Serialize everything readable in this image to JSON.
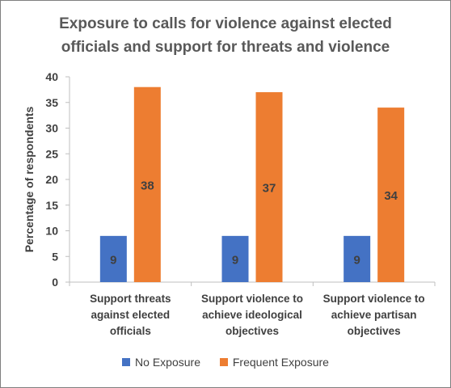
{
  "chart_data": {
    "type": "bar",
    "title_lines": [
      "Exposure to calls for violence against elected",
      "officials and support for threats and violence"
    ],
    "ylabel": "Percentage of respondents",
    "xlabel": "",
    "ylim": [
      0,
      40
    ],
    "yticks": [
      0,
      5,
      10,
      15,
      20,
      25,
      30,
      35,
      40
    ],
    "grid": false,
    "legend_position": "bottom",
    "categories": [
      [
        "Support threats",
        "against elected",
        "officials"
      ],
      [
        "Support violence to",
        "achieve ideological",
        "objectives"
      ],
      [
        "Support violence to",
        "achieve partisan",
        "objectives"
      ]
    ],
    "series": [
      {
        "name": "No Exposure",
        "color": "#4472c4",
        "values": [
          9,
          9,
          9
        ]
      },
      {
        "name": "Frequent Exposure",
        "color": "#ed7d31",
        "values": [
          38,
          37,
          34
        ]
      }
    ],
    "data_label_color": "#404040"
  }
}
